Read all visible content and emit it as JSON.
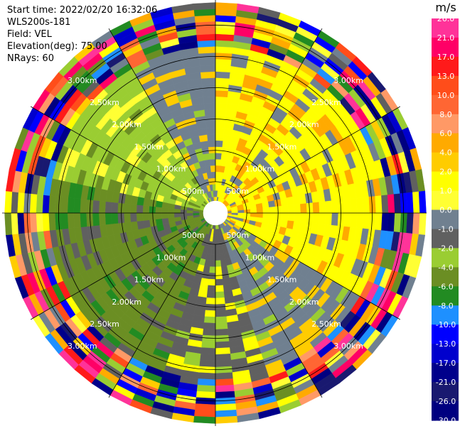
{
  "info": {
    "start_time": "Start time: 2022/02/20 16:32:06",
    "instrument": "WLS200s-181",
    "field": "Field: VEL",
    "elevation": "Elevation(deg): 75.00",
    "nrays": "NRays: 60"
  },
  "chart_data": {
    "type": "heatmap",
    "projection": "polar-ppi",
    "field": "VEL",
    "units": "m/s",
    "nrays": 60,
    "ring_labels": [
      "500m",
      "1.00km",
      "1.50km",
      "2.00km",
      "2.50km",
      "3.00km"
    ],
    "ring_ranges_km": [
      0.5,
      1.0,
      1.5,
      2.0,
      2.5,
      3.0
    ],
    "max_range_km": 3.4,
    "colorbar": {
      "label": "m/s",
      "ticks": [
        "26.0",
        "21.0",
        "17.0",
        "13.0",
        "10.0",
        "8.0",
        "6.0",
        "4.0",
        "2.0",
        "1.0",
        "0.0",
        "-1.0",
        "-2.0",
        "-4.0",
        "-6.0",
        "-8.0",
        "-10.0",
        "-13.0",
        "-17.0",
        "-21.0",
        "-26.0",
        "-30.0"
      ],
      "colors": [
        "#ff3399",
        "#ff0066",
        "#ff1a1a",
        "#ff4d1a",
        "#ff6633",
        "#ff9966",
        "#ffaa00",
        "#ffcc00",
        "#ffff00",
        "#ffff33",
        "#708090",
        "#606060",
        "#9acd32",
        "#6b8e23",
        "#228b22",
        "#1e90ff",
        "#0000ff",
        "#0000cd",
        "#00008b",
        "#191970",
        "#000080"
      ]
    },
    "sector_values": [
      {
        "az_from": 0,
        "az_to": 60,
        "value": 2.0
      },
      {
        "az_from": 60,
        "az_to": 120,
        "value": 2.0
      },
      {
        "az_from": 120,
        "az_to": 160,
        "value": 0.0
      },
      {
        "az_from": 160,
        "az_to": 200,
        "value": -1.0
      },
      {
        "az_from": 200,
        "az_to": 280,
        "value": -4.0
      },
      {
        "az_from": 280,
        "az_to": 330,
        "value": -2.0
      },
      {
        "az_from": 330,
        "az_to": 360,
        "value": 0.0
      }
    ]
  }
}
